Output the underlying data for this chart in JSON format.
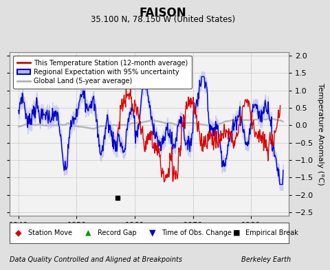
{
  "title": "FAISON",
  "subtitle": "35.100 N, 78.150 W (United States)",
  "ylabel": "Temperature Anomaly (°C)",
  "xlabel_left": "Data Quality Controlled and Aligned at Breakpoints",
  "xlabel_right": "Berkeley Earth",
  "xlim": [
    1938.5,
    1986.5
  ],
  "ylim": [
    -2.6,
    2.1
  ],
  "yticks": [
    -2.5,
    -2,
    -1.5,
    -1,
    -0.5,
    0,
    0.5,
    1,
    1.5,
    2
  ],
  "xticks": [
    1940,
    1950,
    1960,
    1970,
    1980
  ],
  "bg_color": "#e0e0e0",
  "plot_bg_color": "#f2f2f2",
  "grid_color": "#c8c8c8",
  "empirical_break_x": 1957.0,
  "empirical_break_y": -2.08,
  "legend_entries": [
    "This Temperature Station (12-month average)",
    "Regional Expectation with 95% uncertainty",
    "Global Land (5-year average)"
  ],
  "station_color": "#dd0000",
  "regional_color": "#0000cc",
  "regional_fill_color": "#b0b8ff",
  "global_color": "#b0b0b0",
  "seed": 7
}
